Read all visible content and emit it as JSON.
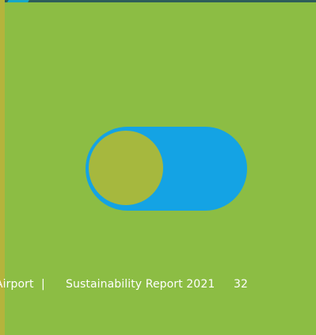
{
  "footer": {
    "org": "Airport",
    "separator": "|",
    "report_title": "Sustainability Report 2021",
    "page_number": "32"
  },
  "toggle": {
    "state": "off"
  },
  "colors": {
    "background": "#8cbd44",
    "toggle_track": "#14a3e4",
    "toggle_knob": "#a6b83e",
    "top_band": "#2e5d5a",
    "left_edge": "#b4b43c",
    "footer_text": "#ffffff"
  }
}
